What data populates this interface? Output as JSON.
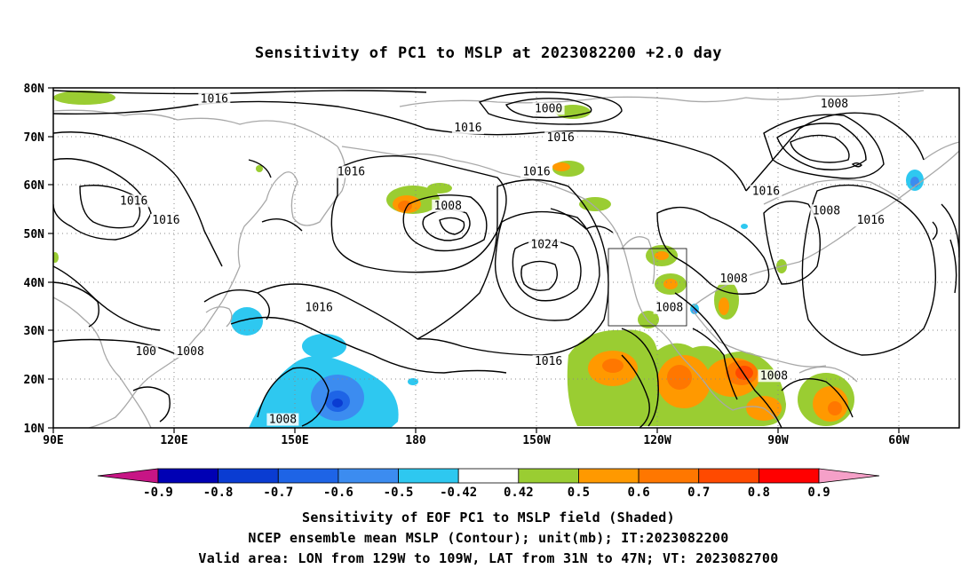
{
  "title": "Sensitivity of PC1 to MSLP at 2023082200 +2.0 day",
  "captions": [
    "Sensitivity of EOF PC1 to MSLP field (Shaded)",
    "NCEP ensemble mean MSLP (Contour); unit(mb); IT:2023082200",
    "Valid area: LON from 129W to 109W, LAT from 31N to 47N; VT: 2023082700"
  ],
  "axes": {
    "lat_labels": [
      "80N",
      "70N",
      "60N",
      "50N",
      "40N",
      "30N",
      "20N",
      "10N"
    ],
    "lon_labels": [
      "90E",
      "120E",
      "150E",
      "180",
      "150W",
      "120W",
      "90W",
      "60W"
    ],
    "lon_range_deg_east": [
      90,
      315
    ],
    "lat_range": [
      10,
      80
    ],
    "grid": "dotted"
  },
  "valid_area_box": {
    "lon_w": [
      129,
      109
    ],
    "lat_n": [
      31,
      47
    ]
  },
  "colorbar": {
    "labels": [
      "-0.9",
      "-0.8",
      "-0.7",
      "-0.6",
      "-0.5",
      "-0.42",
      "0.42",
      "0.5",
      "0.6",
      "0.7",
      "0.8",
      "0.9"
    ],
    "colors": [
      "#c71585",
      "#0000b4",
      "#0a3cd2",
      "#1e64e6",
      "#3c8cf0",
      "#2ec8f0",
      "#ffffff",
      "#9acd32",
      "#ff9900",
      "#ff7700",
      "#ff4a00",
      "#ff0000",
      "#f5a0c8"
    ]
  },
  "shading": {
    "positive": [
      {
        "lon": 176,
        "lat": 54,
        "level": 0.6
      },
      {
        "lon": 200,
        "lat": 78,
        "level": 0.5
      },
      {
        "lon": 224,
        "lat": 62,
        "level": 0.6
      },
      {
        "lon": 243,
        "lat": 45,
        "level": 0.6
      },
      {
        "lon": 244,
        "lat": 39,
        "level": 0.6
      },
      {
        "lon": 237,
        "lat": 22,
        "level": 0.6
      },
      {
        "lon": 243,
        "lat": 20,
        "level": 0.7
      },
      {
        "lon": 251,
        "lat": 19,
        "level": 0.7
      },
      {
        "lon": 265,
        "lat": 21,
        "level": 0.8
      },
      {
        "lon": 287,
        "lat": 15,
        "level": 0.7
      },
      {
        "lon": 92,
        "lat": 78,
        "level": 0.5
      }
    ],
    "negative": [
      {
        "lon": 138,
        "lat": 32,
        "level": -0.5
      },
      {
        "lon": 154,
        "lat": 24,
        "level": -0.5
      },
      {
        "lon": 163,
        "lat": 16,
        "level": -0.6
      },
      {
        "lon": 162,
        "lat": 15,
        "level": -0.7
      },
      {
        "lon": 303,
        "lat": 62,
        "level": -0.5
      }
    ]
  },
  "contour_labels": [
    {
      "text": "1016",
      "lon": 130,
      "lat": 77
    },
    {
      "text": "1016",
      "lon": 193,
      "lat": 71
    },
    {
      "text": "1000",
      "lon": 213,
      "lat": 75
    },
    {
      "text": "1016",
      "lon": 216,
      "lat": 69
    },
    {
      "text": "1008",
      "lon": 284,
      "lat": 76
    },
    {
      "text": "1016",
      "lon": 164,
      "lat": 62
    },
    {
      "text": "1016",
      "lon": 210,
      "lat": 62
    },
    {
      "text": "1008",
      "lon": 188,
      "lat": 55
    },
    {
      "text": "1016",
      "lon": 267,
      "lat": 58
    },
    {
      "text": "1008",
      "lon": 282,
      "lat": 54
    },
    {
      "text": "1016",
      "lon": 293,
      "lat": 52
    },
    {
      "text": "1016",
      "lon": 110,
      "lat": 56
    },
    {
      "text": "1016",
      "lon": 118,
      "lat": 52
    },
    {
      "text": "1024",
      "lon": 212,
      "lat": 47
    },
    {
      "text": "1008",
      "lon": 259,
      "lat": 40
    },
    {
      "text": "1016",
      "lon": 156,
      "lat": 34
    },
    {
      "text": "1008",
      "lon": 243,
      "lat": 34
    },
    {
      "text": "1008",
      "lon": 124,
      "lat": 25
    },
    {
      "text": "1008",
      "lon": 269,
      "lat": 20
    },
    {
      "text": "1008",
      "lon": 147,
      "lat": 11
    },
    {
      "text": "1016",
      "lon": 213,
      "lat": 23
    },
    {
      "text": "100",
      "lon": 113,
      "lat": 25
    }
  ]
}
